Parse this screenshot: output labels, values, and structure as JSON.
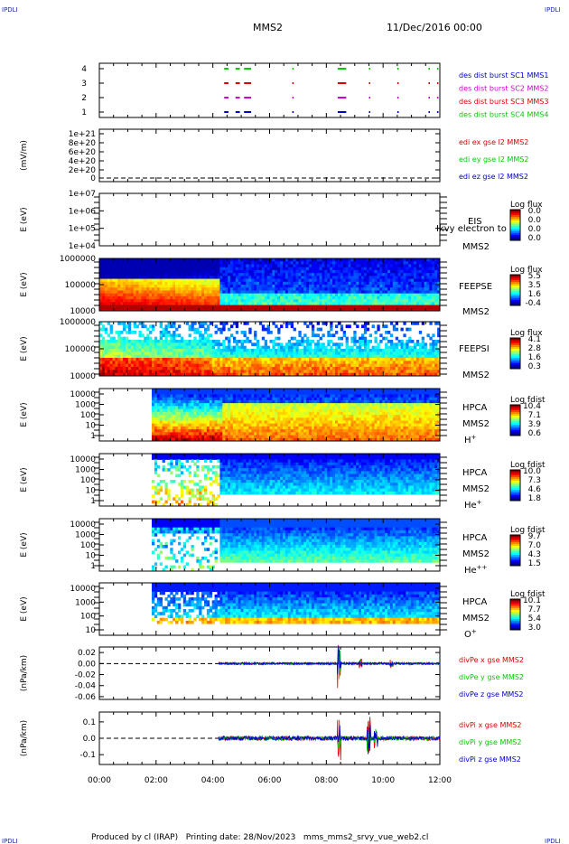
{
  "corner_label": "IPDLI",
  "header": {
    "mission": "MMS2",
    "datetime": "11/Dec/2016 00:00"
  },
  "footer": {
    "text": "Produced by cl (IRAP)   Printing date: 28/Nov/2023   mms_mms2_srvy_vue_web2.cl"
  },
  "colors": {
    "red": "#dd0000",
    "magenta": "#d000d0",
    "green": "#00cc00",
    "blue": "#0000cc"
  },
  "chart_data": {
    "type": "heatmap",
    "x_ticks": [
      "00:00",
      "02:00",
      "04:00",
      "06:00",
      "08:00",
      "10:00",
      "12:00"
    ],
    "x_range_hours": [
      0,
      12
    ],
    "panels": [
      {
        "id": "burst",
        "type": "timeline",
        "yticks": [
          "4",
          "3",
          "2",
          "1"
        ],
        "legend": [
          {
            "text": "des dist burst SC1 MMS1",
            "color": "#0000cc"
          },
          {
            "text": "des dist burst SC2 MMS2",
            "color": "#d000d0"
          },
          {
            "text": "des dist burst SC3 MMS3",
            "color": "#dd0000"
          },
          {
            "text": "des dist burst SC4 MMS4",
            "color": "#00cc00"
          }
        ],
        "intervals_hours": [
          [
            4.4,
            4.55
          ],
          [
            4.8,
            4.95
          ],
          [
            5.1,
            5.35
          ],
          [
            6.8,
            6.85
          ],
          [
            8.4,
            8.7
          ],
          [
            9.5,
            9.55
          ],
          [
            10.5,
            10.55
          ],
          [
            11.6,
            11.65
          ],
          [
            11.9,
            11.95
          ]
        ]
      },
      {
        "id": "edi",
        "type": "line",
        "ylabel": "(mV/m)",
        "yticks": [
          "1e+21",
          "8e+20",
          "6e+20",
          "4e+20",
          "2e+20",
          "0"
        ],
        "legend": [
          {
            "text": "edi ex gse l2 MMS2",
            "color": "#dd0000"
          },
          {
            "text": "edi ey gse l2 MMS2",
            "color": "#00cc00"
          },
          {
            "text": "edi ez gse l2 MMS2",
            "color": "#0000cc"
          }
        ]
      },
      {
        "id": "eis",
        "type": "heatmap",
        "ylabel": "E (eV)",
        "yticks": [
          "1e+07",
          "1e+06",
          "1e+05",
          "1e+04"
        ],
        "inst": [
          "EIS"
        ],
        "overlay": "Ikvy electron to",
        "sc": "MMS2",
        "cbar_title": "Log flux",
        "cbar_values": [
          "0.0",
          "0.0",
          "0.0",
          "0.0"
        ]
      },
      {
        "id": "feepse",
        "type": "heatmap",
        "ylabel": "E (eV)",
        "yticks": [
          "1000000",
          "100000",
          "10000"
        ],
        "inst": [
          "FEEPSE"
        ],
        "sc": "MMS2",
        "cbar_title": "Log flux",
        "cbar_values": [
          "5.5",
          "3.5",
          "1.6",
          "-0.4"
        ]
      },
      {
        "id": "feepsi",
        "type": "heatmap",
        "ylabel": "E (eV)",
        "yticks": [
          "1000000",
          "100000",
          "10000"
        ],
        "inst": [
          "FEEPSI"
        ],
        "sc": "MMS2",
        "cbar_title": "Log flux",
        "cbar_values": [
          "4.1",
          "2.8",
          "1.6",
          "0.3"
        ]
      },
      {
        "id": "hpca_h",
        "type": "heatmap",
        "ylabel": "E (eV)",
        "yticks": [
          "10000",
          "1000",
          "100",
          "10",
          "1"
        ],
        "inst": [
          "HPCA",
          "MMS2"
        ],
        "species": "H",
        "species_sup": "+",
        "cbar_title": "Log fdist",
        "cbar_values": [
          "10.4",
          "7.1",
          "3.9",
          "0.6"
        ]
      },
      {
        "id": "hpca_he",
        "type": "heatmap",
        "ylabel": "E (eV)",
        "yticks": [
          "10000",
          "1000",
          "100",
          "10",
          "1"
        ],
        "inst": [
          "HPCA",
          "MMS2"
        ],
        "species": "He",
        "species_sup": "+",
        "cbar_title": "Log fdist",
        "cbar_values": [
          "10.0",
          "7.3",
          "4.6",
          "1.8"
        ]
      },
      {
        "id": "hpca_hepp",
        "type": "heatmap",
        "ylabel": "E (eV)",
        "yticks": [
          "10000",
          "1000",
          "100",
          "10",
          "1"
        ],
        "inst": [
          "HPCA",
          "MMS2"
        ],
        "species": "He",
        "species_sup": "++",
        "cbar_title": "Log fdist",
        "cbar_values": [
          "9.7",
          "7.0",
          "4.3",
          "1.5"
        ]
      },
      {
        "id": "hpca_o",
        "type": "heatmap",
        "ylabel": "E (eV)",
        "yticks": [
          "10000",
          "1000",
          "100",
          "10"
        ],
        "inst": [
          "HPCA",
          "MMS2"
        ],
        "species": "O",
        "species_sup": "+",
        "cbar_title": "Log fdist",
        "cbar_values": [
          "10.1",
          "7.7",
          "5.4",
          "3.0"
        ]
      },
      {
        "id": "divpe",
        "type": "line",
        "ylabel": "(nPa/km)",
        "yticks": [
          "0.02",
          "0.00",
          "-0.02",
          "-0.04",
          "-0.06"
        ],
        "yvals": [
          0.02,
          0.0,
          -0.02,
          -0.04,
          -0.06
        ],
        "ylim": [
          -0.065,
          0.03
        ],
        "legend": [
          {
            "text": "divPe x gse MMS2",
            "color": "#dd0000"
          },
          {
            "text": "divPe y gse MMS2",
            "color": "#00cc00"
          },
          {
            "text": "divPe z gse MMS2",
            "color": "#0000cc"
          }
        ]
      },
      {
        "id": "divpi",
        "type": "line",
        "ylabel": "(nPa/km)",
        "yticks": [
          "0.1",
          "0.0",
          "-0.1"
        ],
        "yvals": [
          0.1,
          0.0,
          -0.1
        ],
        "ylim": [
          -0.16,
          0.16
        ],
        "legend": [
          {
            "text": "divPi x gse MMS2",
            "color": "#dd0000"
          },
          {
            "text": "divPi y gse MMS2",
            "color": "#00cc00"
          },
          {
            "text": "divPi z gse MMS2",
            "color": "#0000cc"
          }
        ]
      }
    ]
  }
}
